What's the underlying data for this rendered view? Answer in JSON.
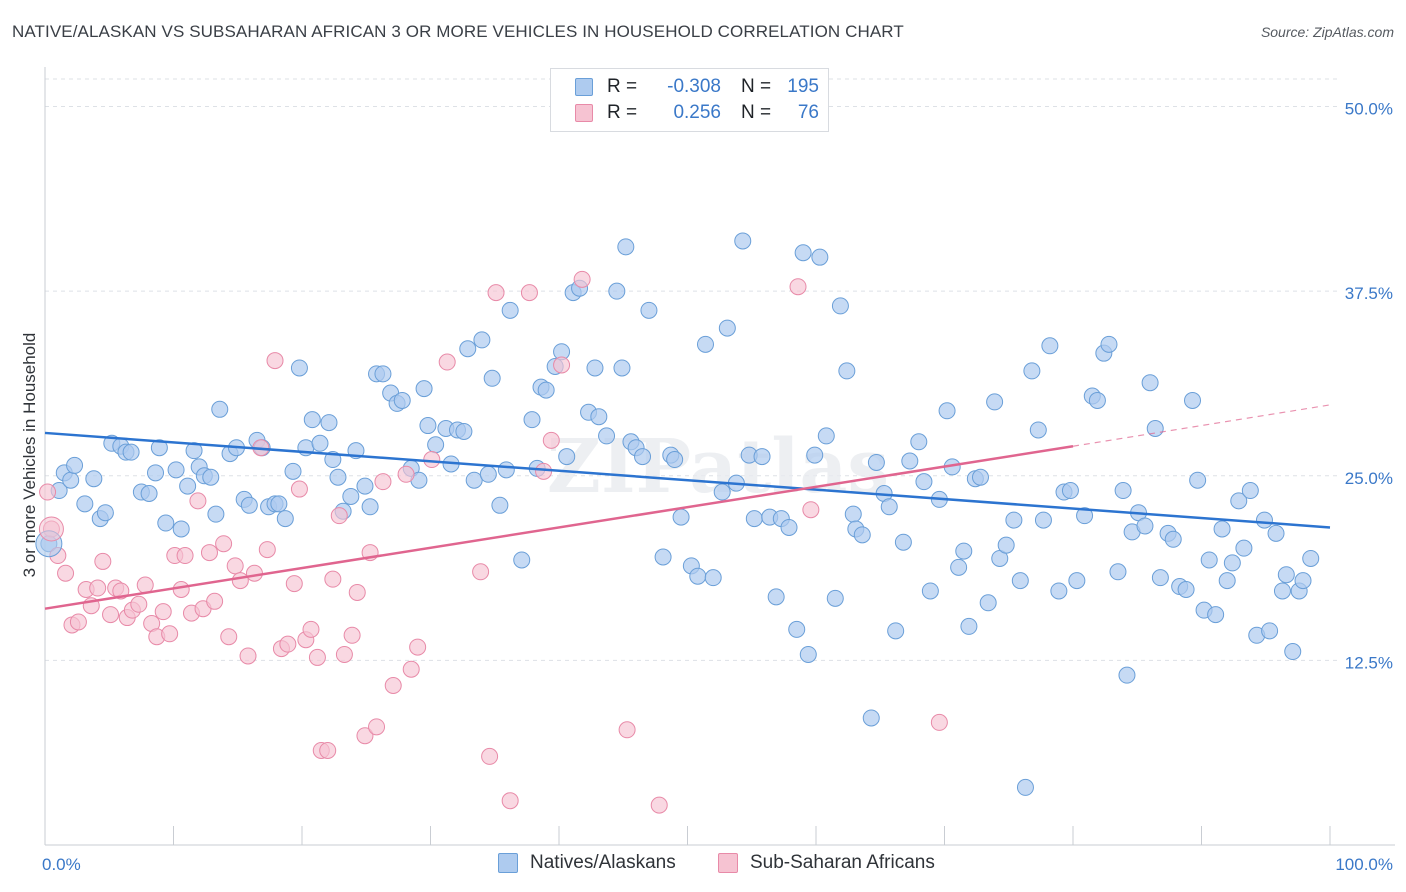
{
  "header": {
    "title": "NATIVE/ALASKAN VS SUBSAHARAN AFRICAN 3 OR MORE VEHICLES IN HOUSEHOLD CORRELATION CHART",
    "source": "Source: ZipAtlas.com"
  },
  "legend": {
    "rows": [
      {
        "r_label": "R =",
        "r_value": "-0.308",
        "n_label": "N =",
        "n_value": "195"
      },
      {
        "r_label": "R =",
        "r_value": "0.256",
        "n_label": "N =",
        "n_value": "76"
      }
    ],
    "series": [
      "Natives/Alaskans",
      "Sub-Saharan Africans"
    ]
  },
  "colors": {
    "blue_fill": "#aecbef",
    "blue_stroke": "#6a9fd8",
    "blue_line": "#2c74d0",
    "pink_fill": "#f6c3d2",
    "pink_stroke": "#e88aa8",
    "pink_line": "#e0658f",
    "tick_label": "#3a78c8",
    "grid": "#dde1e6"
  },
  "chart_data": {
    "type": "scatter",
    "title": "NATIVE/ALASKAN VS SUBSAHARAN AFRICAN 3 OR MORE VEHICLES IN HOUSEHOLD CORRELATION CHART",
    "xlabel": "",
    "ylabel": "3 or more Vehicles in Household",
    "xlim": [
      0,
      100
    ],
    "ylim": [
      0,
      52
    ],
    "x_tick_labels": [
      "0.0%",
      "100.0%"
    ],
    "y_ticks": [
      12.5,
      25.0,
      37.5,
      50.0
    ],
    "y_tick_labels": [
      "12.5%",
      "25.0%",
      "37.5%",
      "50.0%"
    ],
    "grid": true,
    "legend_position": "top-center",
    "watermark": "ZIPatlas",
    "series": [
      {
        "name": "Natives/Alaskans",
        "color": "#aecbef",
        "trend": {
          "x": [
            0,
            100
          ],
          "y": [
            27.9,
            21.5
          ]
        },
        "points": [
          [
            0.3,
            20.4
          ],
          [
            1.1,
            24.0
          ],
          [
            1.5,
            25.2
          ],
          [
            2.0,
            24.7
          ],
          [
            2.3,
            25.7
          ],
          [
            3.1,
            23.1
          ],
          [
            3.8,
            24.8
          ],
          [
            4.3,
            22.1
          ],
          [
            4.7,
            22.5
          ],
          [
            5.2,
            27.2
          ],
          [
            5.9,
            27.0
          ],
          [
            6.3,
            26.6
          ],
          [
            6.7,
            26.6
          ],
          [
            7.5,
            23.9
          ],
          [
            8.1,
            23.8
          ],
          [
            8.6,
            25.2
          ],
          [
            8.9,
            26.9
          ],
          [
            9.4,
            21.8
          ],
          [
            10.2,
            25.4
          ],
          [
            10.6,
            21.4
          ],
          [
            11.1,
            24.3
          ],
          [
            11.6,
            26.7
          ],
          [
            12.0,
            25.6
          ],
          [
            12.4,
            25.0
          ],
          [
            12.9,
            24.9
          ],
          [
            13.3,
            22.4
          ],
          [
            13.6,
            29.5
          ],
          [
            14.4,
            26.5
          ],
          [
            14.9,
            26.9
          ],
          [
            15.5,
            23.4
          ],
          [
            15.9,
            23.0
          ],
          [
            16.5,
            27.4
          ],
          [
            16.9,
            26.9
          ],
          [
            17.4,
            22.9
          ],
          [
            17.9,
            23.1
          ],
          [
            18.2,
            23.1
          ],
          [
            18.7,
            22.1
          ],
          [
            19.3,
            25.3
          ],
          [
            19.8,
            32.3
          ],
          [
            20.3,
            26.9
          ],
          [
            20.8,
            28.8
          ],
          [
            21.4,
            27.2
          ],
          [
            22.1,
            28.6
          ],
          [
            22.4,
            26.1
          ],
          [
            22.8,
            24.9
          ],
          [
            23.2,
            22.6
          ],
          [
            23.8,
            23.6
          ],
          [
            24.2,
            26.7
          ],
          [
            24.9,
            24.3
          ],
          [
            25.3,
            22.9
          ],
          [
            25.8,
            31.9
          ],
          [
            26.3,
            31.9
          ],
          [
            26.9,
            30.6
          ],
          [
            27.4,
            29.9
          ],
          [
            27.8,
            30.1
          ],
          [
            28.5,
            25.5
          ],
          [
            29.1,
            24.7
          ],
          [
            29.5,
            30.9
          ],
          [
            29.8,
            28.4
          ],
          [
            30.4,
            27.1
          ],
          [
            31.2,
            28.2
          ],
          [
            31.6,
            25.8
          ],
          [
            32.1,
            28.1
          ],
          [
            32.6,
            28.0
          ],
          [
            32.9,
            33.6
          ],
          [
            33.4,
            24.7
          ],
          [
            34.0,
            34.2
          ],
          [
            34.5,
            25.1
          ],
          [
            34.8,
            31.6
          ],
          [
            35.4,
            23.0
          ],
          [
            35.9,
            25.4
          ],
          [
            36.2,
            36.2
          ],
          [
            37.1,
            19.3
          ],
          [
            37.9,
            28.8
          ],
          [
            38.3,
            25.5
          ],
          [
            38.6,
            31.0
          ],
          [
            39.0,
            30.8
          ],
          [
            39.7,
            32.4
          ],
          [
            40.2,
            33.4
          ],
          [
            40.6,
            26.3
          ],
          [
            41.1,
            37.4
          ],
          [
            41.6,
            37.7
          ],
          [
            42.3,
            29.3
          ],
          [
            42.8,
            32.3
          ],
          [
            43.1,
            29.0
          ],
          [
            43.7,
            27.7
          ],
          [
            44.5,
            37.5
          ],
          [
            44.9,
            32.3
          ],
          [
            45.2,
            40.5
          ],
          [
            45.6,
            27.3
          ],
          [
            46.0,
            26.9
          ],
          [
            46.5,
            26.3
          ],
          [
            47.0,
            36.2
          ],
          [
            48.1,
            19.5
          ],
          [
            48.7,
            26.4
          ],
          [
            49.0,
            26.1
          ],
          [
            49.5,
            22.2
          ],
          [
            50.3,
            18.9
          ],
          [
            50.8,
            18.2
          ],
          [
            51.4,
            33.9
          ],
          [
            52.0,
            18.1
          ],
          [
            52.7,
            23.9
          ],
          [
            53.1,
            35.0
          ],
          [
            53.8,
            24.5
          ],
          [
            54.3,
            40.9
          ],
          [
            54.8,
            26.4
          ],
          [
            55.2,
            22.1
          ],
          [
            55.8,
            26.3
          ],
          [
            56.4,
            22.2
          ],
          [
            56.9,
            16.8
          ],
          [
            57.3,
            22.1
          ],
          [
            57.9,
            21.5
          ],
          [
            58.5,
            14.6
          ],
          [
            59.0,
            40.1
          ],
          [
            59.4,
            12.9
          ],
          [
            59.9,
            26.4
          ],
          [
            60.3,
            39.8
          ],
          [
            60.8,
            27.7
          ],
          [
            61.5,
            16.7
          ],
          [
            61.9,
            36.5
          ],
          [
            62.4,
            32.1
          ],
          [
            62.9,
            22.4
          ],
          [
            63.1,
            21.4
          ],
          [
            63.6,
            21.0
          ],
          [
            64.3,
            8.6
          ],
          [
            64.7,
            25.9
          ],
          [
            65.3,
            23.8
          ],
          [
            65.7,
            22.9
          ],
          [
            66.2,
            14.5
          ],
          [
            66.8,
            20.5
          ],
          [
            67.3,
            26.0
          ],
          [
            68.0,
            27.3
          ],
          [
            68.4,
            24.6
          ],
          [
            68.9,
            17.2
          ],
          [
            69.6,
            23.4
          ],
          [
            70.2,
            29.4
          ],
          [
            70.6,
            25.6
          ],
          [
            71.1,
            18.8
          ],
          [
            71.5,
            19.9
          ],
          [
            71.9,
            14.8
          ],
          [
            72.4,
            24.8
          ],
          [
            72.8,
            24.9
          ],
          [
            73.4,
            16.4
          ],
          [
            73.9,
            30.0
          ],
          [
            74.3,
            19.4
          ],
          [
            74.8,
            20.3
          ],
          [
            75.4,
            22.0
          ],
          [
            75.9,
            17.9
          ],
          [
            76.3,
            3.9
          ],
          [
            76.8,
            32.1
          ],
          [
            77.3,
            28.1
          ],
          [
            77.7,
            22.0
          ],
          [
            78.2,
            33.8
          ],
          [
            78.9,
            17.2
          ],
          [
            79.3,
            23.9
          ],
          [
            79.8,
            24.0
          ],
          [
            80.3,
            17.9
          ],
          [
            80.9,
            22.3
          ],
          [
            81.5,
            30.4
          ],
          [
            81.9,
            30.1
          ],
          [
            82.4,
            33.3
          ],
          [
            82.8,
            33.9
          ],
          [
            83.5,
            18.5
          ],
          [
            83.9,
            24.0
          ],
          [
            84.2,
            11.5
          ],
          [
            84.6,
            21.2
          ],
          [
            85.1,
            22.5
          ],
          [
            85.6,
            21.6
          ],
          [
            86.0,
            31.3
          ],
          [
            86.4,
            28.2
          ],
          [
            86.8,
            18.1
          ],
          [
            87.4,
            21.1
          ],
          [
            87.8,
            20.7
          ],
          [
            88.3,
            17.5
          ],
          [
            88.8,
            17.3
          ],
          [
            89.3,
            30.1
          ],
          [
            89.7,
            24.7
          ],
          [
            90.2,
            15.9
          ],
          [
            90.6,
            19.3
          ],
          [
            91.1,
            15.6
          ],
          [
            91.6,
            21.4
          ],
          [
            92.0,
            17.9
          ],
          [
            92.4,
            19.1
          ],
          [
            92.9,
            23.3
          ],
          [
            93.3,
            20.1
          ],
          [
            93.8,
            24.0
          ],
          [
            94.3,
            14.2
          ],
          [
            94.9,
            22.0
          ],
          [
            95.3,
            14.5
          ],
          [
            95.8,
            21.1
          ],
          [
            96.3,
            17.2
          ],
          [
            96.6,
            18.3
          ],
          [
            97.1,
            13.1
          ],
          [
            97.6,
            17.2
          ],
          [
            97.9,
            17.9
          ],
          [
            98.5,
            19.4
          ]
        ]
      },
      {
        "name": "Sub-Saharan Africans",
        "color": "#f6c3d2",
        "trend": {
          "x": [
            0,
            80
          ],
          "y": [
            16.0,
            27.0
          ]
        },
        "trend_dashed": {
          "x": [
            80,
            100
          ],
          "y": [
            27.0,
            29.8
          ]
        },
        "points": [
          [
            0.2,
            23.9
          ],
          [
            0.5,
            21.4
          ],
          [
            1.0,
            19.6
          ],
          [
            1.6,
            18.4
          ],
          [
            2.1,
            14.9
          ],
          [
            2.6,
            15.1
          ],
          [
            3.2,
            17.3
          ],
          [
            3.6,
            16.2
          ],
          [
            4.1,
            17.4
          ],
          [
            4.5,
            19.2
          ],
          [
            5.1,
            15.6
          ],
          [
            5.5,
            17.4
          ],
          [
            5.9,
            17.2
          ],
          [
            6.4,
            15.4
          ],
          [
            6.8,
            15.9
          ],
          [
            7.3,
            16.3
          ],
          [
            7.8,
            17.6
          ],
          [
            8.3,
            15.0
          ],
          [
            8.7,
            14.1
          ],
          [
            9.2,
            15.8
          ],
          [
            9.7,
            14.3
          ],
          [
            10.1,
            19.6
          ],
          [
            10.6,
            17.3
          ],
          [
            10.9,
            19.6
          ],
          [
            11.4,
            15.7
          ],
          [
            11.9,
            23.3
          ],
          [
            12.3,
            16.0
          ],
          [
            12.8,
            19.8
          ],
          [
            13.2,
            16.5
          ],
          [
            13.9,
            20.4
          ],
          [
            14.3,
            14.1
          ],
          [
            14.8,
            18.9
          ],
          [
            15.2,
            17.9
          ],
          [
            15.8,
            12.8
          ],
          [
            16.3,
            18.4
          ],
          [
            16.8,
            26.9
          ],
          [
            17.3,
            20.0
          ],
          [
            17.9,
            32.8
          ],
          [
            18.4,
            13.3
          ],
          [
            18.9,
            13.6
          ],
          [
            19.4,
            17.7
          ],
          [
            19.8,
            24.1
          ],
          [
            20.3,
            13.9
          ],
          [
            20.7,
            14.6
          ],
          [
            21.2,
            12.7
          ],
          [
            21.5,
            6.4
          ],
          [
            22.0,
            6.4
          ],
          [
            22.4,
            18.0
          ],
          [
            22.9,
            22.3
          ],
          [
            23.3,
            12.9
          ],
          [
            23.9,
            14.2
          ],
          [
            24.3,
            17.1
          ],
          [
            24.9,
            7.4
          ],
          [
            25.3,
            19.8
          ],
          [
            25.8,
            8.0
          ],
          [
            26.3,
            24.6
          ],
          [
            27.1,
            10.8
          ],
          [
            28.1,
            25.1
          ],
          [
            28.5,
            11.9
          ],
          [
            29.0,
            13.4
          ],
          [
            30.1,
            26.1
          ],
          [
            31.3,
            32.7
          ],
          [
            33.9,
            18.5
          ],
          [
            34.6,
            6.0
          ],
          [
            35.1,
            37.4
          ],
          [
            36.2,
            3.0
          ],
          [
            37.7,
            37.4
          ],
          [
            38.8,
            25.3
          ],
          [
            39.4,
            27.4
          ],
          [
            40.2,
            32.5
          ],
          [
            41.8,
            38.3
          ],
          [
            45.3,
            7.8
          ],
          [
            47.8,
            2.7
          ],
          [
            58.6,
            37.8
          ],
          [
            59.6,
            22.7
          ],
          [
            69.6,
            8.3
          ]
        ]
      }
    ]
  }
}
